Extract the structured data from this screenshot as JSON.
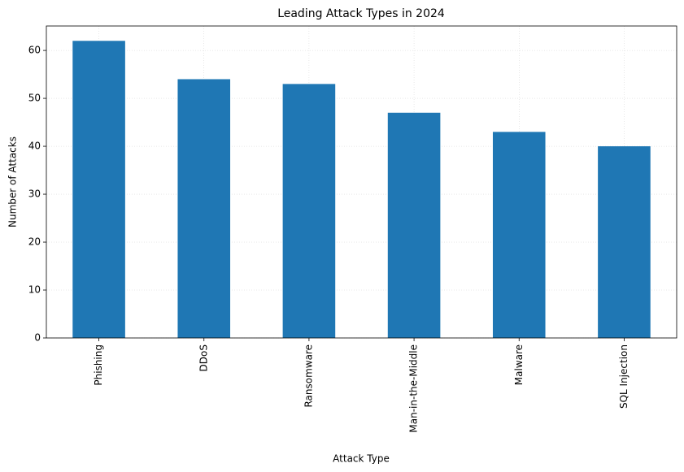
{
  "chart_data": {
    "type": "bar",
    "title": "Leading Attack Types in 2024",
    "x_label": "Attack Type",
    "y_label": "Number of Attacks",
    "categories": [
      "Phishing",
      "DDoS",
      "Ransomware",
      "Man-in-the-Middle",
      "Malware",
      "SQL Injection"
    ],
    "values": [
      62,
      54,
      53,
      47,
      43,
      40
    ],
    "color": "#1f77b4",
    "ylim": [
      0,
      65.1
    ],
    "yticks": [
      0,
      10,
      20,
      30,
      40,
      50,
      60
    ],
    "grid": true
  }
}
